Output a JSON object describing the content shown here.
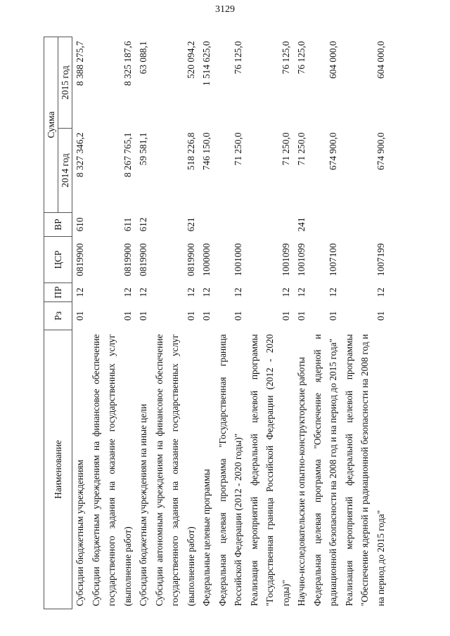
{
  "page_number": "3129",
  "table": {
    "headers": {
      "name": "Наименование",
      "rz": "Рз",
      "pr": "ПР",
      "csr": "ЦСР",
      "vr": "ВР",
      "sum": "Сумма",
      "y2014": "2014 год",
      "y2015": "2015 год"
    },
    "rows": [
      {
        "name": "Субсидии бюджетным учреждениям",
        "rz": "01",
        "pr": "12",
        "csr": "0819900",
        "vr": "610",
        "y2014": "8 327 346,2",
        "y2015": "8 388 275,7"
      },
      {
        "name": "Субсидии бюджетным учреждениям на финансовое обеспечение государственного задания на оказание государственных услуг (выполнение работ)",
        "rz": "01",
        "pr": "12",
        "csr": "0819900",
        "vr": "611",
        "y2014": "8 267 765,1",
        "y2015": "8 325 187,6"
      },
      {
        "name": "Субсидии бюджетным учреждениям на иные цели",
        "rz": "01",
        "pr": "12",
        "csr": "0819900",
        "vr": "612",
        "y2014": "59 581,1",
        "y2015": "63 088,1"
      },
      {
        "name": "Субсидии автономным учреждениям на финансовое обеспечение государственного задания на оказание государственных услуг (выполнение работ)",
        "rz": "01",
        "pr": "12",
        "csr": "0819900",
        "vr": "621",
        "y2014": "518 226,8",
        "y2015": "520 094,2"
      },
      {
        "name": "Федеральные целевые программы",
        "rz": "01",
        "pr": "12",
        "csr": "1000000",
        "vr": "",
        "y2014": "746 150,0",
        "y2015": "1 514 625,0"
      },
      {
        "name": "Федеральная целевая программа \"Государственная граница Российской Федерации (2012 - 2020 годы)\"",
        "rz": "01",
        "pr": "12",
        "csr": "1001000",
        "vr": "",
        "y2014": "71 250,0",
        "y2015": "76 125,0"
      },
      {
        "name": "Реализация мероприятий федеральной целевой программы \"Государственная граница Российской Федерации (2012 - 2020 годы)\"",
        "rz": "01",
        "pr": "12",
        "csr": "1001099",
        "vr": "",
        "y2014": "71 250,0",
        "y2015": "76 125,0"
      },
      {
        "name": "Научно-исследовательские и опытно-конструкторские работы",
        "rz": "01",
        "pr": "12",
        "csr": "1001099",
        "vr": "241",
        "y2014": "71 250,0",
        "y2015": "76 125,0"
      },
      {
        "name": "Федеральная целевая программа \"Обеспечение ядерной и радиационной безопасности на 2008 год и на период до 2015 года\"",
        "rz": "01",
        "pr": "12",
        "csr": "1007100",
        "vr": "",
        "y2014": "674 900,0",
        "y2015": "604 000,0"
      },
      {
        "name": "Реализация мероприятий федеральной целевой программы \"Обеспечение ядерной и радиационной безопасности на 2008 год и на период до 2015 года\"",
        "rz": "01",
        "pr": "12",
        "csr": "1007199",
        "vr": "",
        "y2014": "674 900,0",
        "y2015": "604 000,0"
      }
    ]
  }
}
